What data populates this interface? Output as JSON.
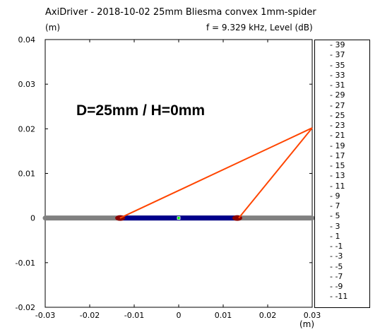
{
  "window": {
    "title": "AxiDriver - 2018-10-02 25mm Bliesma convex 1mm-spider",
    "y_unit": "(m)",
    "x_unit": "(m)",
    "freq_label": "f = 9.329 kHz, Level  (dB)"
  },
  "annotation": "D=25mm / H=0mm",
  "colors": {
    "baffle": "#808080",
    "diaphragm": "#00008b",
    "surround": "#8b0000",
    "ray": "#ff4500",
    "center_marker": "#00ff00"
  },
  "chart_data": {
    "type": "scatter",
    "xlim": [
      -0.03,
      0.03
    ],
    "ylim": [
      -0.02,
      0.04
    ],
    "x_ticks": [
      -0.03,
      -0.02,
      -0.01,
      0,
      0.01,
      0.02,
      0.03
    ],
    "x_tick_labels": [
      "-0.03",
      "-0.02",
      "-0.01",
      "0",
      "0.01",
      "0.02",
      "0.03"
    ],
    "y_ticks": [
      0.04,
      0.03,
      0.02,
      0.01,
      0,
      -0.01,
      -0.02
    ],
    "y_tick_labels": [
      "0.04",
      "0.03",
      "0.02",
      "0.01",
      "0",
      "-0.01",
      "-0.02"
    ],
    "baffle": {
      "x": [
        -0.03,
        0.03
      ],
      "y": 0
    },
    "diaphragm": {
      "x": [
        -0.013,
        0.013
      ],
      "y": 0
    },
    "rays": [
      {
        "from": [
          -0.0132,
          0
        ],
        "to": [
          0.03,
          0.0202
        ]
      },
      {
        "from": [
          0.0135,
          0
        ],
        "to": [
          0.03,
          0.0202
        ]
      }
    ],
    "colorbar_labels": [
      "39",
      "37",
      "35",
      "33",
      "31",
      "29",
      "27",
      "25",
      "23",
      "21",
      "19",
      "17",
      "15",
      "13",
      "11",
      "9",
      "7",
      "5",
      "3",
      "1",
      "-1",
      "-3",
      "-5",
      "-7",
      "-9",
      "-11"
    ]
  }
}
